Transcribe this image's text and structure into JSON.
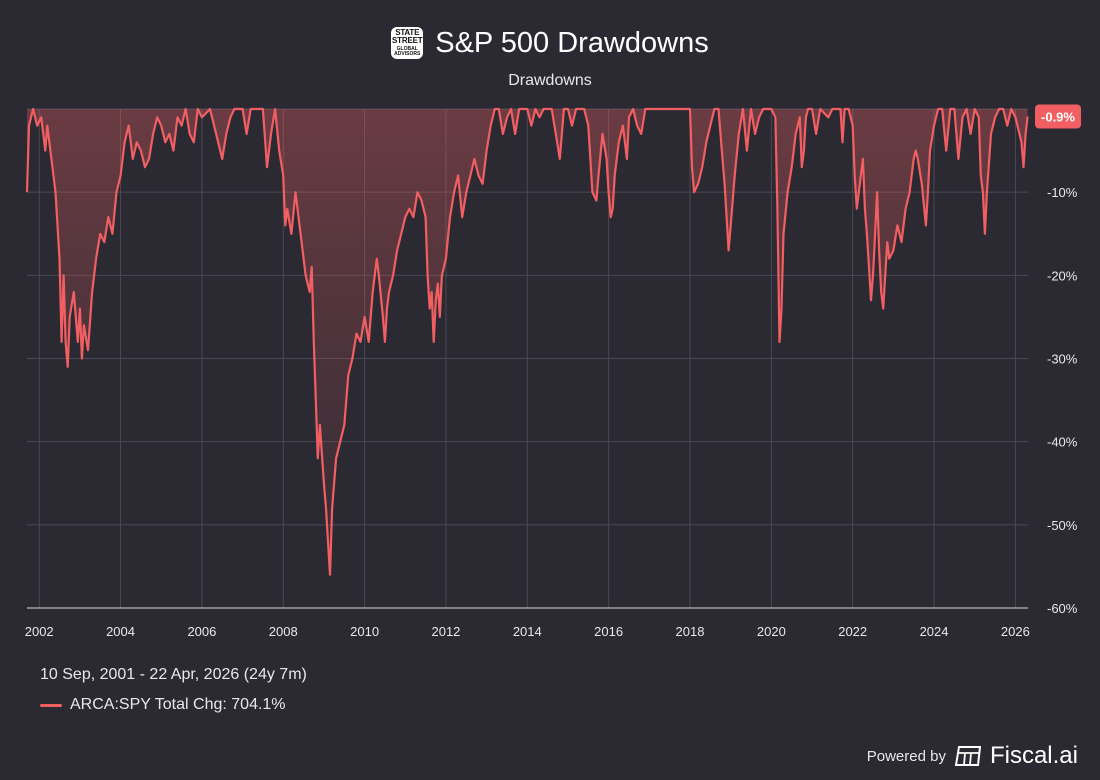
{
  "header": {
    "title": "S&P 500 Drawdowns",
    "subtitle": "Drawdowns",
    "logo_text": "STATE STREET",
    "logo_subtext": "GLOBAL ADVISORS"
  },
  "current_badge": "-0.9%",
  "range_text": "10 Sep, 2001 - 22 Apr, 2026 (24y 7m)",
  "legend": {
    "label": "ARCA:SPY Total Chg: 704.1%"
  },
  "footer": {
    "powered_by": "Powered by",
    "brand": "Fiscal.ai"
  },
  "colors": {
    "line": "#f15f62",
    "background": "#2b2a33",
    "badge": "#f15f62",
    "grid": "#4a4954"
  },
  "chart_data": {
    "type": "area",
    "title": "S&P 500 Drawdowns",
    "subtitle": "Drawdowns",
    "series": [
      {
        "name": "ARCA:SPY Total Chg: 704.1%",
        "points": [
          [
            2001.7,
            -10
          ],
          [
            2001.75,
            -2
          ],
          [
            2001.85,
            0
          ],
          [
            2001.95,
            -2
          ],
          [
            2002.05,
            -1
          ],
          [
            2002.15,
            -5
          ],
          [
            2002.2,
            -2
          ],
          [
            2002.3,
            -6
          ],
          [
            2002.4,
            -10
          ],
          [
            2002.5,
            -18
          ],
          [
            2002.55,
            -28
          ],
          [
            2002.6,
            -20
          ],
          [
            2002.65,
            -28
          ],
          [
            2002.7,
            -31
          ],
          [
            2002.75,
            -25
          ],
          [
            2002.85,
            -22
          ],
          [
            2002.95,
            -28
          ],
          [
            2003.0,
            -24
          ],
          [
            2003.05,
            -30
          ],
          [
            2003.1,
            -26
          ],
          [
            2003.2,
            -29
          ],
          [
            2003.3,
            -22
          ],
          [
            2003.4,
            -18
          ],
          [
            2003.5,
            -15
          ],
          [
            2003.6,
            -16
          ],
          [
            2003.7,
            -13
          ],
          [
            2003.8,
            -15
          ],
          [
            2003.9,
            -10
          ],
          [
            2004.0,
            -8
          ],
          [
            2004.1,
            -4
          ],
          [
            2004.2,
            -2
          ],
          [
            2004.3,
            -6
          ],
          [
            2004.4,
            -4
          ],
          [
            2004.5,
            -5
          ],
          [
            2004.6,
            -7
          ],
          [
            2004.7,
            -6
          ],
          [
            2004.8,
            -3
          ],
          [
            2004.9,
            -1
          ],
          [
            2005.0,
            -2
          ],
          [
            2005.1,
            -4
          ],
          [
            2005.2,
            -3
          ],
          [
            2005.3,
            -5
          ],
          [
            2005.4,
            -1
          ],
          [
            2005.5,
            -2
          ],
          [
            2005.6,
            0
          ],
          [
            2005.7,
            -3
          ],
          [
            2005.8,
            -4
          ],
          [
            2005.9,
            0
          ],
          [
            2006.0,
            -1
          ],
          [
            2006.2,
            0
          ],
          [
            2006.4,
            -4
          ],
          [
            2006.5,
            -6
          ],
          [
            2006.6,
            -3
          ],
          [
            2006.7,
            -1
          ],
          [
            2006.8,
            0
          ],
          [
            2007.0,
            0
          ],
          [
            2007.1,
            -3
          ],
          [
            2007.2,
            0
          ],
          [
            2007.4,
            0
          ],
          [
            2007.5,
            0
          ],
          [
            2007.6,
            -7
          ],
          [
            2007.7,
            -3
          ],
          [
            2007.8,
            0
          ],
          [
            2007.9,
            -5
          ],
          [
            2008.0,
            -8
          ],
          [
            2008.05,
            -14
          ],
          [
            2008.1,
            -12
          ],
          [
            2008.2,
            -15
          ],
          [
            2008.3,
            -10
          ],
          [
            2008.35,
            -12
          ],
          [
            2008.45,
            -16
          ],
          [
            2008.55,
            -20
          ],
          [
            2008.65,
            -22
          ],
          [
            2008.7,
            -19
          ],
          [
            2008.75,
            -28
          ],
          [
            2008.8,
            -35
          ],
          [
            2008.85,
            -42
          ],
          [
            2008.9,
            -38
          ],
          [
            2009.0,
            -45
          ],
          [
            2009.05,
            -48
          ],
          [
            2009.1,
            -52
          ],
          [
            2009.15,
            -56
          ],
          [
            2009.2,
            -48
          ],
          [
            2009.3,
            -42
          ],
          [
            2009.4,
            -40
          ],
          [
            2009.5,
            -38
          ],
          [
            2009.6,
            -32
          ],
          [
            2009.7,
            -30
          ],
          [
            2009.8,
            -27
          ],
          [
            2009.9,
            -28
          ],
          [
            2010.0,
            -25
          ],
          [
            2010.1,
            -28
          ],
          [
            2010.2,
            -22
          ],
          [
            2010.3,
            -18
          ],
          [
            2010.35,
            -20
          ],
          [
            2010.45,
            -25
          ],
          [
            2010.5,
            -28
          ],
          [
            2010.55,
            -24
          ],
          [
            2010.6,
            -22
          ],
          [
            2010.7,
            -20
          ],
          [
            2010.8,
            -17
          ],
          [
            2010.9,
            -15
          ],
          [
            2011.0,
            -13
          ],
          [
            2011.1,
            -12
          ],
          [
            2011.2,
            -13
          ],
          [
            2011.3,
            -10
          ],
          [
            2011.4,
            -11
          ],
          [
            2011.5,
            -13
          ],
          [
            2011.55,
            -20
          ],
          [
            2011.6,
            -24
          ],
          [
            2011.65,
            -22
          ],
          [
            2011.7,
            -28
          ],
          [
            2011.75,
            -23
          ],
          [
            2011.8,
            -21
          ],
          [
            2011.85,
            -25
          ],
          [
            2011.9,
            -20
          ],
          [
            2012.0,
            -18
          ],
          [
            2012.1,
            -13
          ],
          [
            2012.2,
            -10
          ],
          [
            2012.3,
            -8
          ],
          [
            2012.4,
            -13
          ],
          [
            2012.5,
            -10
          ],
          [
            2012.6,
            -8
          ],
          [
            2012.7,
            -6
          ],
          [
            2012.8,
            -8
          ],
          [
            2012.9,
            -9
          ],
          [
            2013.0,
            -5
          ],
          [
            2013.1,
            -2
          ],
          [
            2013.2,
            0
          ],
          [
            2013.3,
            0
          ],
          [
            2013.4,
            -3
          ],
          [
            2013.5,
            -1
          ],
          [
            2013.6,
            0
          ],
          [
            2013.7,
            -3
          ],
          [
            2013.8,
            0
          ],
          [
            2014.0,
            0
          ],
          [
            2014.1,
            -2
          ],
          [
            2014.2,
            0
          ],
          [
            2014.3,
            -1
          ],
          [
            2014.4,
            0
          ],
          [
            2014.6,
            0
          ],
          [
            2014.7,
            -3
          ],
          [
            2014.8,
            -6
          ],
          [
            2014.9,
            0
          ],
          [
            2015.0,
            0
          ],
          [
            2015.1,
            -2
          ],
          [
            2015.2,
            0
          ],
          [
            2015.4,
            0
          ],
          [
            2015.5,
            -2
          ],
          [
            2015.6,
            -10
          ],
          [
            2015.7,
            -11
          ],
          [
            2015.75,
            -8
          ],
          [
            2015.85,
            -3
          ],
          [
            2015.95,
            -6
          ],
          [
            2016.0,
            -10
          ],
          [
            2016.05,
            -13
          ],
          [
            2016.1,
            -12
          ],
          [
            2016.15,
            -8
          ],
          [
            2016.25,
            -4
          ],
          [
            2016.35,
            -2
          ],
          [
            2016.45,
            -6
          ],
          [
            2016.5,
            -1
          ],
          [
            2016.6,
            0
          ],
          [
            2016.7,
            -2
          ],
          [
            2016.8,
            -3
          ],
          [
            2016.9,
            0
          ],
          [
            2017.0,
            0
          ],
          [
            2017.5,
            0
          ],
          [
            2017.9,
            0
          ],
          [
            2018.0,
            0
          ],
          [
            2018.05,
            -7
          ],
          [
            2018.1,
            -10
          ],
          [
            2018.2,
            -9
          ],
          [
            2018.3,
            -7
          ],
          [
            2018.4,
            -4
          ],
          [
            2018.5,
            -2
          ],
          [
            2018.6,
            0
          ],
          [
            2018.7,
            0
          ],
          [
            2018.8,
            -6
          ],
          [
            2018.85,
            -9
          ],
          [
            2018.9,
            -13
          ],
          [
            2018.95,
            -17
          ],
          [
            2019.0,
            -14
          ],
          [
            2019.1,
            -8
          ],
          [
            2019.2,
            -3
          ],
          [
            2019.3,
            0
          ],
          [
            2019.4,
            -5
          ],
          [
            2019.5,
            0
          ],
          [
            2019.6,
            -3
          ],
          [
            2019.7,
            -1
          ],
          [
            2019.8,
            0
          ],
          [
            2019.9,
            0
          ],
          [
            2020.0,
            0
          ],
          [
            2020.1,
            -1
          ],
          [
            2020.15,
            -12
          ],
          [
            2020.2,
            -28
          ],
          [
            2020.25,
            -24
          ],
          [
            2020.3,
            -15
          ],
          [
            2020.4,
            -10
          ],
          [
            2020.5,
            -7
          ],
          [
            2020.6,
            -3
          ],
          [
            2020.7,
            -1
          ],
          [
            2020.75,
            -7
          ],
          [
            2020.8,
            -5
          ],
          [
            2020.85,
            -1
          ],
          [
            2020.9,
            0
          ],
          [
            2021.0,
            0
          ],
          [
            2021.1,
            -3
          ],
          [
            2021.2,
            0
          ],
          [
            2021.4,
            -1
          ],
          [
            2021.5,
            0
          ],
          [
            2021.7,
            0
          ],
          [
            2021.75,
            -4
          ],
          [
            2021.8,
            0
          ],
          [
            2021.9,
            0
          ],
          [
            2022.0,
            -2
          ],
          [
            2022.05,
            -8
          ],
          [
            2022.1,
            -12
          ],
          [
            2022.15,
            -10
          ],
          [
            2022.25,
            -6
          ],
          [
            2022.3,
            -12
          ],
          [
            2022.35,
            -15
          ],
          [
            2022.4,
            -19
          ],
          [
            2022.45,
            -23
          ],
          [
            2022.5,
            -20
          ],
          [
            2022.55,
            -15
          ],
          [
            2022.6,
            -10
          ],
          [
            2022.65,
            -17
          ],
          [
            2022.7,
            -22
          ],
          [
            2022.75,
            -24
          ],
          [
            2022.8,
            -20
          ],
          [
            2022.85,
            -16
          ],
          [
            2022.9,
            -18
          ],
          [
            2023.0,
            -17
          ],
          [
            2023.1,
            -14
          ],
          [
            2023.2,
            -16
          ],
          [
            2023.3,
            -12
          ],
          [
            2023.4,
            -10
          ],
          [
            2023.5,
            -6
          ],
          [
            2023.55,
            -5
          ],
          [
            2023.6,
            -6
          ],
          [
            2023.7,
            -9
          ],
          [
            2023.8,
            -14
          ],
          [
            2023.85,
            -10
          ],
          [
            2023.9,
            -5
          ],
          [
            2024.0,
            -2
          ],
          [
            2024.1,
            0
          ],
          [
            2024.2,
            0
          ],
          [
            2024.3,
            -5
          ],
          [
            2024.4,
            0
          ],
          [
            2024.5,
            0
          ],
          [
            2024.6,
            -6
          ],
          [
            2024.7,
            -1
          ],
          [
            2024.8,
            0
          ],
          [
            2024.9,
            -3
          ],
          [
            2025.0,
            0
          ],
          [
            2025.1,
            -1
          ],
          [
            2025.15,
            -8
          ],
          [
            2025.2,
            -10
          ],
          [
            2025.25,
            -15
          ],
          [
            2025.3,
            -10
          ],
          [
            2025.4,
            -3
          ],
          [
            2025.5,
            -1
          ],
          [
            2025.6,
            0
          ],
          [
            2025.7,
            0
          ],
          [
            2025.8,
            -2
          ],
          [
            2025.9,
            0
          ],
          [
            2026.0,
            -1
          ],
          [
            2026.1,
            -3
          ],
          [
            2026.15,
            -4
          ],
          [
            2026.2,
            -7
          ],
          [
            2026.25,
            -3
          ],
          [
            2026.3,
            -0.9
          ]
        ]
      }
    ],
    "xlim": [
      2001.7,
      2026.31
    ],
    "ylim": [
      -60,
      0
    ],
    "x_ticks": [
      "2002",
      "2004",
      "2006",
      "2008",
      "2010",
      "2012",
      "2014",
      "2016",
      "2018",
      "2020",
      "2022",
      "2024",
      "2026"
    ],
    "x_tick_values": [
      2002,
      2004,
      2006,
      2008,
      2010,
      2012,
      2014,
      2016,
      2018,
      2020,
      2022,
      2024,
      2026
    ],
    "y_ticks": [
      "-10%",
      "-20%",
      "-30%",
      "-40%",
      "-50%",
      "-60%"
    ],
    "y_tick_values": [
      -10,
      -20,
      -30,
      -40,
      -50,
      -60
    ],
    "last_value": -0.9,
    "grid": true,
    "legend_position": "bottom-left"
  }
}
